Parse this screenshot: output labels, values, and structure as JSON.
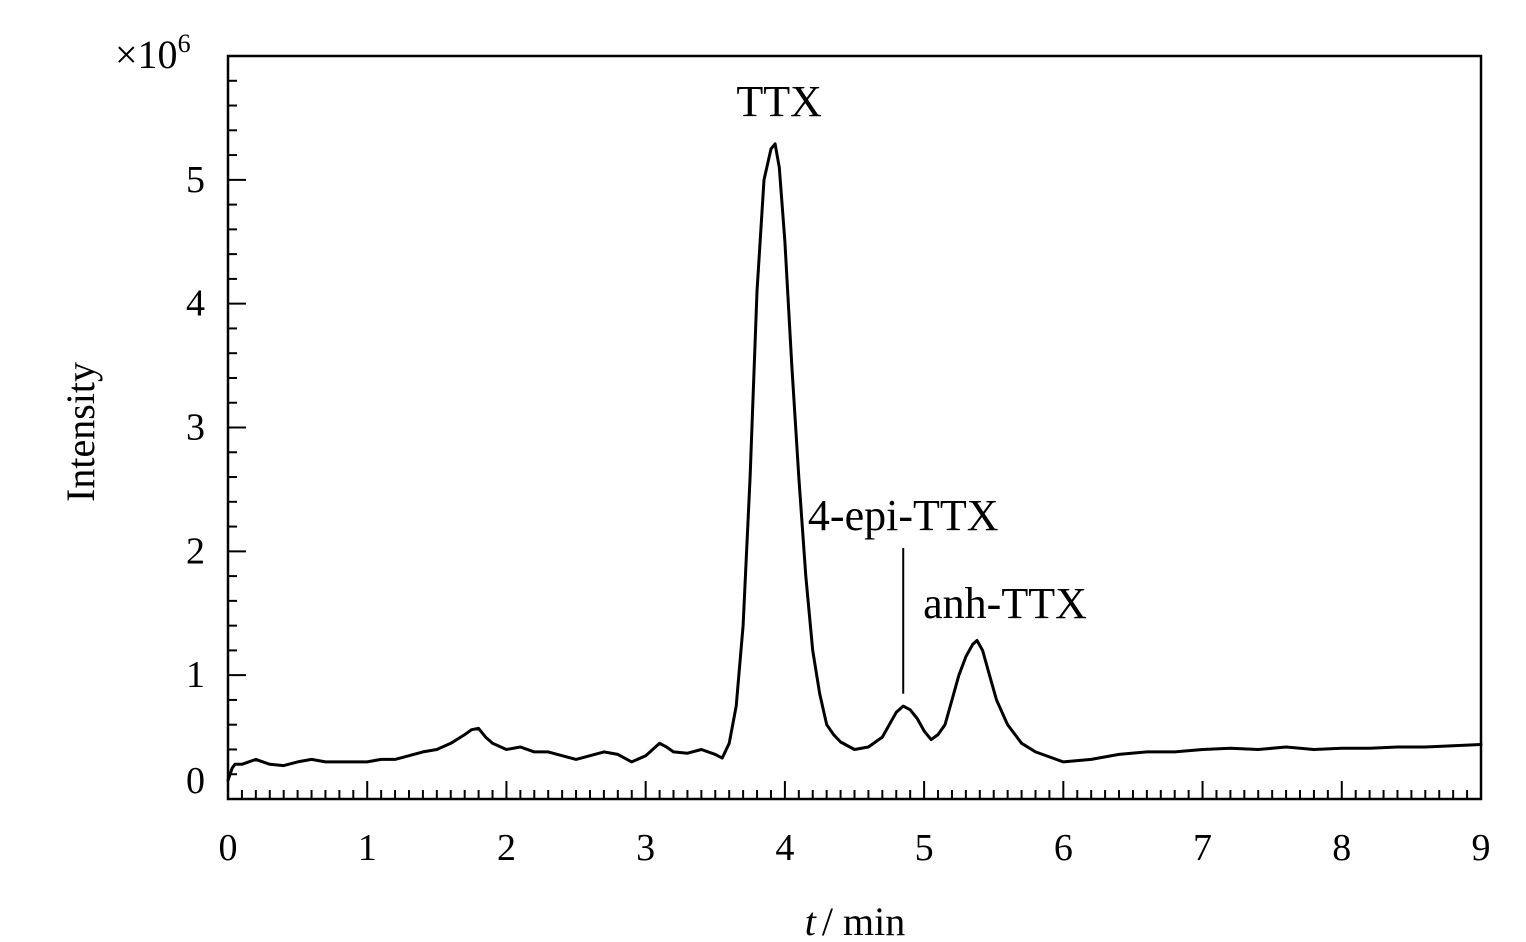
{
  "chart_data": {
    "type": "line",
    "title": "",
    "ylabel": "Intensity",
    "xlabel_italic": "t",
    "xlabel_rest": "/ min",
    "y_multiplier_prefix": "×10",
    "y_multiplier_exponent": "6",
    "xlim": [
      0,
      9
    ],
    "ylim": [
      0,
      6
    ],
    "grid": false,
    "x_ticks": [
      "0",
      "1",
      "2",
      "3",
      "4",
      "5",
      "6",
      "7",
      "8",
      "9"
    ],
    "y_ticks": [
      "0",
      "1",
      "2",
      "3",
      "4",
      "5"
    ],
    "series": [
      {
        "x": [
          0.0,
          0.03,
          0.05,
          0.1,
          0.2,
          0.3,
          0.4,
          0.5,
          0.6,
          0.7,
          0.8,
          0.9,
          1.0,
          1.1,
          1.2,
          1.3,
          1.4,
          1.5,
          1.6,
          1.7,
          1.75,
          1.8,
          1.85,
          1.9,
          2.0,
          2.1,
          2.2,
          2.3,
          2.4,
          2.5,
          2.6,
          2.7,
          2.8,
          2.9,
          3.0,
          3.1,
          3.15,
          3.2,
          3.3,
          3.4,
          3.5,
          3.55,
          3.6,
          3.65,
          3.7,
          3.75,
          3.8,
          3.85,
          3.9,
          3.93,
          3.96,
          4.0,
          4.05,
          4.1,
          4.15,
          4.2,
          4.25,
          4.3,
          4.35,
          4.4,
          4.5,
          4.6,
          4.7,
          4.75,
          4.8,
          4.85,
          4.9,
          4.95,
          5.0,
          5.05,
          5.1,
          5.15,
          5.2,
          5.25,
          5.3,
          5.35,
          5.38,
          5.42,
          5.47,
          5.52,
          5.6,
          5.7,
          5.8,
          5.9,
          6.0,
          6.2,
          6.4,
          6.6,
          6.8,
          7.0,
          7.2,
          7.4,
          7.6,
          7.8,
          8.0,
          8.2,
          8.4,
          8.6,
          8.8,
          9.0
        ],
        "values": [
          0.15,
          0.25,
          0.28,
          0.28,
          0.32,
          0.28,
          0.27,
          0.3,
          0.32,
          0.3,
          0.3,
          0.3,
          0.3,
          0.32,
          0.32,
          0.35,
          0.38,
          0.4,
          0.45,
          0.52,
          0.56,
          0.57,
          0.5,
          0.45,
          0.4,
          0.42,
          0.38,
          0.38,
          0.35,
          0.32,
          0.35,
          0.38,
          0.36,
          0.3,
          0.35,
          0.45,
          0.42,
          0.38,
          0.37,
          0.4,
          0.36,
          0.33,
          0.45,
          0.75,
          1.4,
          2.6,
          4.1,
          5.0,
          5.25,
          5.29,
          5.1,
          4.5,
          3.5,
          2.6,
          1.8,
          1.2,
          0.85,
          0.6,
          0.52,
          0.46,
          0.4,
          0.42,
          0.5,
          0.6,
          0.7,
          0.75,
          0.72,
          0.65,
          0.55,
          0.48,
          0.52,
          0.6,
          0.8,
          1.0,
          1.15,
          1.25,
          1.28,
          1.2,
          1.0,
          0.8,
          0.6,
          0.45,
          0.38,
          0.34,
          0.3,
          0.32,
          0.36,
          0.38,
          0.38,
          0.4,
          0.41,
          0.4,
          0.42,
          0.4,
          0.41,
          0.41,
          0.42,
          0.42,
          0.43,
          0.44
        ]
      }
    ],
    "annotations": [
      {
        "text": "TTX",
        "x": 3.93,
        "y": 5.29
      },
      {
        "text": "4-epi-TTX",
        "x": 4.85,
        "y": 0.85
      },
      {
        "text": "anh-TTX",
        "x": 5.38,
        "y": 1.28
      }
    ]
  }
}
